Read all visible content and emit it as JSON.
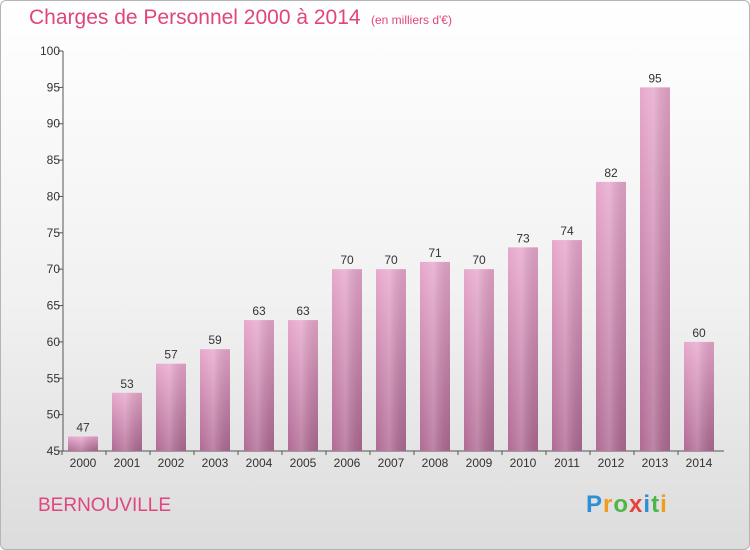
{
  "header": {
    "title": "Charges de Personnel 2000 à 2014",
    "subtitle": "(en milliers d'€)"
  },
  "footer": {
    "commune": "BERNOUVILLE",
    "logo": {
      "letters": [
        "P",
        "r",
        "o",
        "x",
        "i",
        "t",
        "i"
      ],
      "colors": [
        "#2e8fd6",
        "#f39a1e",
        "#4eb648",
        "#e8403a",
        "#2e8fd6",
        "#4eb648",
        "#f39a1e"
      ]
    }
  },
  "chart_data": {
    "type": "bar",
    "categories": [
      "2000",
      "2001",
      "2002",
      "2003",
      "2004",
      "2005",
      "2006",
      "2007",
      "2008",
      "2009",
      "2010",
      "2011",
      "2012",
      "2013",
      "2014"
    ],
    "values": [
      47,
      53,
      57,
      59,
      63,
      63,
      70,
      70,
      71,
      70,
      73,
      74,
      82,
      95,
      60
    ],
    "title": "Charges de Personnel 2000 à 2014",
    "xlabel": "",
    "ylabel": "",
    "ylim": [
      45,
      100
    ],
    "yticks": [
      45,
      50,
      55,
      60,
      65,
      70,
      75,
      80,
      85,
      90,
      95,
      100
    ],
    "grid": false,
    "bar_color": "#d98ab6"
  }
}
